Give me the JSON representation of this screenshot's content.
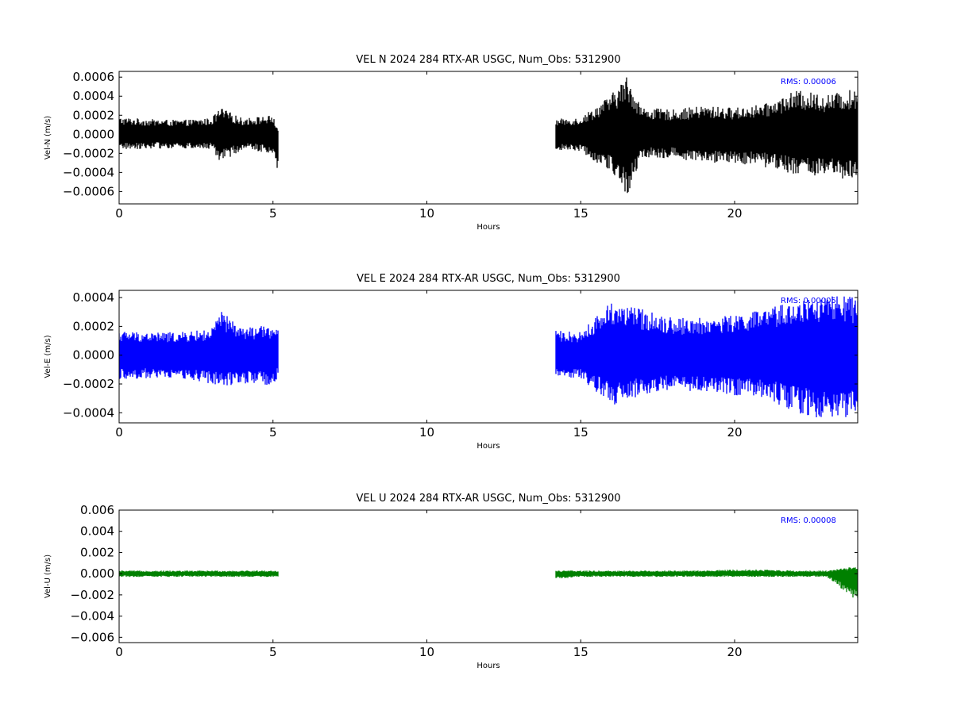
{
  "chart_data": [
    {
      "type": "scatter",
      "title": "VEL N 2024 284 RTX-AR  USGC, Num_Obs: 5312900",
      "xlabel": "Hours",
      "ylabel": "Vel-N (m/s)",
      "xlim": [
        0,
        24
      ],
      "ylim": [
        -0.00073,
        0.00066
      ],
      "xticks": [
        0,
        5,
        10,
        15,
        20
      ],
      "xtick_labels": [
        "0",
        "5",
        "10",
        "15",
        "20"
      ],
      "yticks": [
        0.0006,
        0.0004,
        0.0002,
        0.0,
        -0.0002,
        -0.0004,
        -0.0006
      ],
      "ytick_labels": [
        "0.0006",
        "0.0004",
        "0.0002",
        "0.0000",
        "−0.0002",
        "−0.0004",
        "−0.0006"
      ],
      "annotation": "RMS:  0.00006",
      "color": "#000000",
      "segments": [
        [
          0,
          5.15
        ],
        [
          14.2,
          24
        ]
      ],
      "series": [
        {
          "x": [
            0,
            1,
            2,
            3,
            3.3,
            4,
            5,
            5.15,
            14.2,
            15,
            16,
            16.5,
            17,
            18,
            19,
            20,
            21,
            22,
            23,
            24
          ],
          "y_upper": [
            0.00018,
            0.00016,
            0.00015,
            0.00017,
            0.00028,
            0.00017,
            0.0002,
            5e-05,
            0.00016,
            0.00018,
            0.00042,
            0.00062,
            0.00028,
            0.00026,
            0.0003,
            0.00028,
            0.00032,
            0.00046,
            0.00042,
            0.00048
          ],
          "y_lower": [
            -0.00016,
            -0.00015,
            -0.00015,
            -0.00016,
            -0.0003,
            -0.00016,
            -0.0002,
            -0.00043,
            -0.00016,
            -0.00018,
            -0.0004,
            -0.00065,
            -0.00025,
            -0.00025,
            -0.0003,
            -0.0003,
            -0.00035,
            -0.00042,
            -0.00045,
            -0.0005
          ]
        }
      ]
    },
    {
      "type": "scatter",
      "title": "VEL E 2024 284 RTX-AR  USGC, Num_Obs: 5312900",
      "xlabel": "Hours",
      "ylabel": "Vel-E (m/s)",
      "xlim": [
        0,
        24
      ],
      "ylim": [
        -0.00047,
        0.00045
      ],
      "xticks": [
        0,
        5,
        10,
        15,
        20
      ],
      "xtick_labels": [
        "0",
        "5",
        "10",
        "15",
        "20"
      ],
      "yticks": [
        0.0004,
        0.0002,
        0.0,
        -0.0002,
        -0.0004
      ],
      "ytick_labels": [
        "0.0004",
        "0.0002",
        "0.0000",
        "−0.0002",
        "−0.0004"
      ],
      "annotation": "RMS:  0.00005",
      "color": "#0000ff",
      "segments": [
        [
          0,
          5.15
        ],
        [
          14.2,
          24
        ]
      ],
      "series": [
        {
          "x": [
            0,
            1,
            2,
            3,
            3.3,
            4,
            5,
            5.15,
            14.2,
            15,
            16,
            17,
            18,
            19,
            20,
            21,
            22,
            23,
            24
          ],
          "y_upper": [
            0.00017,
            0.00016,
            0.00016,
            0.00018,
            0.00031,
            0.00019,
            0.00021,
            0.00018,
            0.00017,
            0.00016,
            0.00038,
            0.00032,
            0.00026,
            0.00026,
            0.00028,
            0.00032,
            0.00038,
            0.00042,
            0.0004
          ],
          "y_lower": [
            -0.00017,
            -0.00016,
            -0.00016,
            -0.0002,
            -0.00022,
            -0.0002,
            -0.00021,
            -0.00016,
            -0.00015,
            -0.00016,
            -0.00035,
            -0.00028,
            -0.00025,
            -0.00025,
            -0.00028,
            -0.0003,
            -0.0004,
            -0.00045,
            -0.00042
          ]
        }
      ]
    },
    {
      "type": "scatter",
      "title": "VEL U 2024 284 RTX-AR  USGC, Num_Obs: 5312900",
      "xlabel": "Hours",
      "ylabel": "Vel-U (m/s)",
      "xlim": [
        0,
        24
      ],
      "ylim": [
        -0.0065,
        0.006
      ],
      "xticks": [
        0,
        5,
        10,
        15,
        20
      ],
      "xtick_labels": [
        "0",
        "5",
        "10",
        "15",
        "20"
      ],
      "yticks": [
        0.006,
        0.004,
        0.002,
        0.0,
        -0.002,
        -0.004,
        -0.006
      ],
      "ytick_labels": [
        "0.006",
        "0.004",
        "0.002",
        "0.000",
        "−0.002",
        "−0.004",
        "−0.006"
      ],
      "annotation": "RMS:  0.00008",
      "color": "#008000",
      "segments": [
        [
          0,
          5.15
        ],
        [
          14.2,
          24
        ]
      ],
      "series": [
        {
          "x": [
            0,
            1,
            2,
            3,
            4,
            5,
            5.15,
            14.2,
            15,
            16,
            17,
            18,
            19,
            20,
            21,
            22,
            23,
            24
          ],
          "y_upper": [
            0.0003,
            0.0003,
            0.0003,
            0.0003,
            0.0003,
            0.0003,
            0.0003,
            0.0003,
            0.0003,
            0.0003,
            0.0003,
            0.0003,
            0.0003,
            0.0004,
            0.0004,
            0.0003,
            0.0003,
            0.0007
          ],
          "y_lower": [
            -0.0003,
            -0.0003,
            -0.0003,
            -0.0003,
            -0.0003,
            -0.0003,
            -0.0003,
            -0.0005,
            -0.0003,
            -0.0003,
            -0.0003,
            -0.0003,
            -0.0003,
            -0.0003,
            -0.0003,
            -0.0003,
            -0.0003,
            -0.0027
          ]
        }
      ]
    }
  ]
}
